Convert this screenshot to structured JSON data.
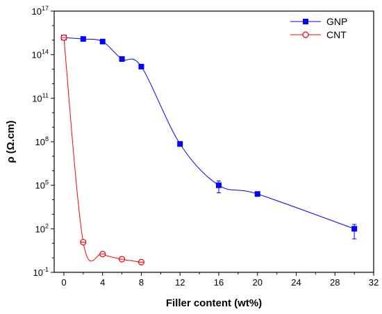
{
  "chart_data": {
    "type": "scatter",
    "xlabel": "Filler content (wt%)",
    "ylabel": "ρ (Ω.cm)",
    "x_ticks": [
      0,
      4,
      8,
      12,
      16,
      20,
      24,
      28,
      32
    ],
    "x_tick_positions": [
      0,
      4,
      8,
      12,
      16,
      20,
      24,
      28,
      32
    ],
    "y_ticks": [
      "10^-1",
      "10^2",
      "10^5",
      "10^8",
      "10^11",
      "10^14",
      "10^17"
    ],
    "y_exponents": [
      -1,
      2,
      5,
      8,
      11,
      14,
      17
    ],
    "yscale": "log",
    "grid": false,
    "legend_position": "top-right",
    "series": [
      {
        "name": "GNP",
        "color": "#0000ff",
        "marker": "filled-square",
        "x": [
          0,
          2,
          4,
          6,
          8,
          12,
          16,
          20,
          30
        ],
        "y": [
          1500000000000000.0,
          1200000000000000.0,
          800000000000000.0,
          50000000000000.0,
          15000000000000.0,
          70000000.0,
          100000.0,
          25000.0,
          100.0
        ],
        "error_low": [
          null,
          null,
          null,
          null,
          null,
          null,
          30000.0,
          null,
          20.0
        ],
        "error_high": [
          null,
          null,
          null,
          null,
          null,
          null,
          200000.0,
          null,
          200.0
        ]
      },
      {
        "name": "CNT",
        "color": "#ff0000",
        "marker": "open-circle",
        "x": [
          0,
          2,
          4,
          6,
          8
        ],
        "y": [
          1500000000000000.0,
          12.0,
          1.8,
          0.8,
          0.5
        ]
      }
    ]
  }
}
